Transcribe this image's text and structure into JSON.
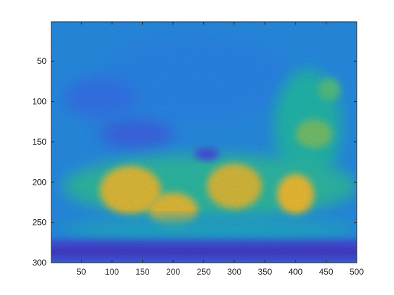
{
  "chart_data": {
    "type": "heatmap",
    "title": "",
    "xlabel": "",
    "ylabel": "",
    "xlim": [
      1,
      500
    ],
    "ylim": [
      300,
      1
    ],
    "x_ticks": [
      50,
      100,
      150,
      200,
      250,
      300,
      350,
      400,
      450,
      500
    ],
    "y_ticks": [
      50,
      100,
      150,
      200,
      250,
      300
    ],
    "x_tick_labels": [
      "50",
      "100",
      "150",
      "200",
      "250",
      "300",
      "350",
      "400",
      "450",
      "500"
    ],
    "y_tick_labels": [
      "50",
      "100",
      "150",
      "200",
      "250",
      "300"
    ],
    "colormap": "parula",
    "colormap_stops": [
      "#3e26a8",
      "#4653e6",
      "#2f82f4",
      "#1ea5dc",
      "#23bcb0",
      "#62c77c",
      "#c5bd42",
      "#fec233",
      "#f9fb15"
    ],
    "approx_value_range": [
      0,
      1
    ],
    "regions": [
      {
        "name": "background",
        "value": 0.3
      },
      {
        "name": "upper-sky",
        "value": 0.28
      },
      {
        "name": "left-top-band",
        "value": 0.22
      },
      {
        "name": "left-mid-band",
        "value": 0.18
      },
      {
        "name": "right-structure",
        "value": 0.5
      },
      {
        "name": "right-upper-spot",
        "value": 0.6
      },
      {
        "name": "right-mid-spot",
        "value": 0.65
      },
      {
        "name": "middle-band",
        "value": 0.52
      },
      {
        "name": "hot-left",
        "value": 0.82
      },
      {
        "name": "hot-center",
        "value": 0.82
      },
      {
        "name": "hot-center-right",
        "value": 0.8
      },
      {
        "name": "hot-right",
        "value": 0.85
      },
      {
        "name": "lower-band",
        "value": 0.42
      },
      {
        "name": "dark-oval",
        "value": 0.12
      },
      {
        "name": "bottom-band",
        "value": 0.1
      },
      {
        "name": "bottom-stripe",
        "value": 0.05
      }
    ]
  }
}
